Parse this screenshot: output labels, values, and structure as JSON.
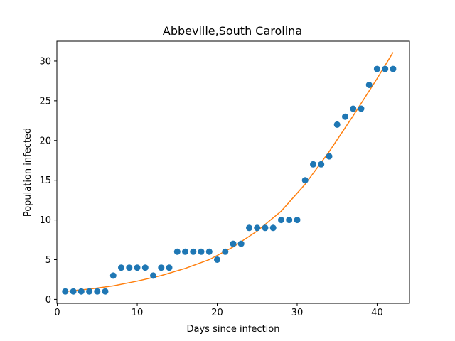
{
  "chart_data": {
    "type": "scatter",
    "title": "Abbeville,South Carolina",
    "xlabel": "Days since infection",
    "ylabel": "Population infected",
    "xlim": [
      -0.05,
      44.05
    ],
    "ylim": [
      -0.5,
      32.5
    ],
    "xticks": [
      0,
      10,
      20,
      30,
      40
    ],
    "yticks": [
      0,
      5,
      10,
      15,
      20,
      25,
      30
    ],
    "grid": false,
    "series": [
      {
        "type": "scatter",
        "color": "#1f77b4",
        "x": [
          1,
          2,
          3,
          4,
          5,
          6,
          7,
          8,
          9,
          10,
          11,
          12,
          13,
          14,
          15,
          16,
          17,
          18,
          19,
          20,
          21,
          22,
          23,
          24,
          25,
          26,
          27,
          28,
          29,
          30,
          31,
          32,
          33,
          34,
          35,
          36,
          37,
          38,
          39,
          40,
          41,
          42
        ],
        "y": [
          1,
          1,
          1,
          1,
          1,
          1,
          3,
          4,
          4,
          4,
          4,
          3,
          4,
          4,
          6,
          6,
          6,
          6,
          6,
          5,
          6,
          7,
          7,
          9,
          9,
          9,
          9,
          10,
          10,
          10,
          15,
          17,
          17,
          18,
          22,
          23,
          24,
          24,
          27,
          29,
          29,
          29
        ]
      },
      {
        "type": "line",
        "color": "#ff7f0e",
        "x": [
          1,
          4,
          7,
          10,
          13,
          16,
          19,
          22,
          25,
          28,
          31,
          34,
          37,
          40,
          42
        ],
        "y": [
          1.0,
          1.3,
          1.7,
          2.3,
          3.0,
          3.9,
          5.0,
          6.6,
          8.6,
          11.1,
          14.5,
          18.6,
          23.1,
          27.8,
          31.1
        ]
      }
    ]
  }
}
